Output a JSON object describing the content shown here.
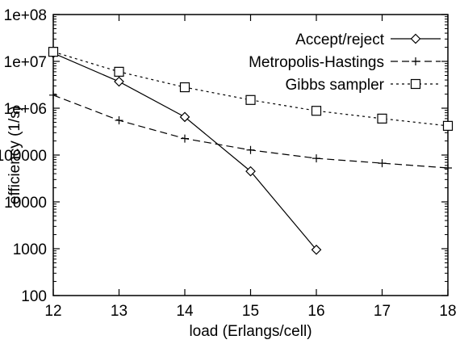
{
  "chart_data": {
    "type": "line",
    "title": "",
    "xlabel": "load (Erlangs/cell)",
    "ylabel": "efficiency (1/s)",
    "xlim": [
      12,
      18
    ],
    "ylim": [
      100,
      100000000
    ],
    "yscale": "log",
    "grid": false,
    "legend_position": "top-right",
    "x_ticks": [
      12,
      13,
      14,
      15,
      16,
      17,
      18
    ],
    "y_ticks": [
      100,
      1000,
      10000,
      100000,
      1000000,
      10000000,
      100000000
    ],
    "x_tick_labels": [
      "12",
      "13",
      "14",
      "15",
      "16",
      "17",
      "18"
    ],
    "y_tick_labels": [
      "100",
      "1000",
      "10000",
      "100000",
      "1e+06",
      "1e+07",
      "1e+08"
    ],
    "series": [
      {
        "name": "Accept/reject",
        "line_style": "solid",
        "marker": "diamond",
        "x": [
          12,
          13,
          14,
          15,
          16
        ],
        "y": [
          15000000,
          3700000,
          650000,
          45000,
          950
        ]
      },
      {
        "name": "Metropolis-Hastings",
        "line_style": "dashed",
        "marker": "plus",
        "x": [
          12,
          13,
          14,
          15,
          16,
          17,
          18
        ],
        "y": [
          1900000,
          550000,
          225000,
          128000,
          85000,
          67000,
          53000
        ]
      },
      {
        "name": "Gibbs sampler",
        "line_style": "dotted",
        "marker": "square",
        "x": [
          12,
          13,
          14,
          15,
          16,
          17,
          18
        ],
        "y": [
          16000000,
          6000000,
          2800000,
          1500000,
          880000,
          600000,
          420000
        ]
      }
    ]
  }
}
